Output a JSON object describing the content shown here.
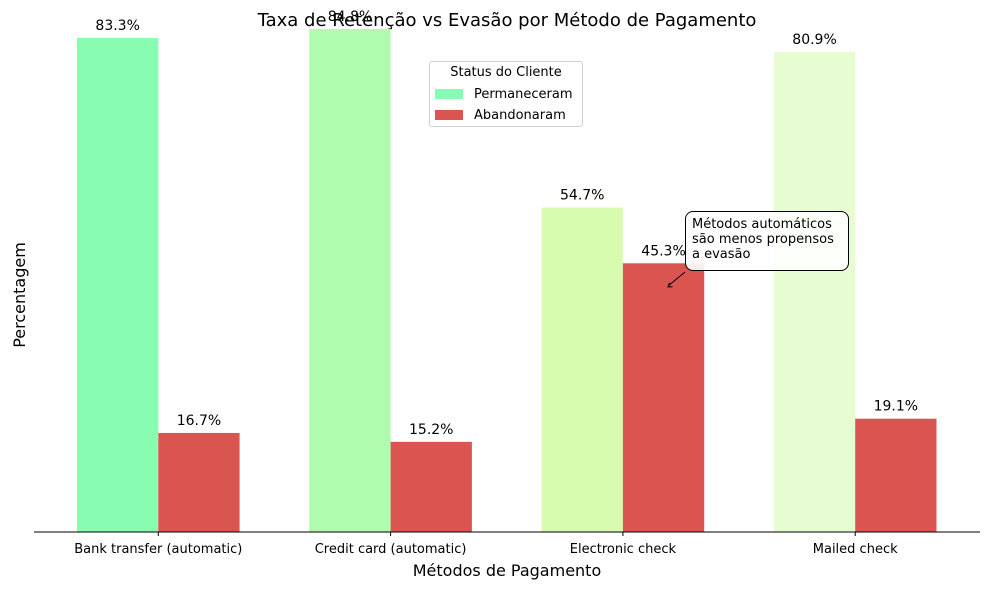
{
  "chart_data": {
    "type": "bar",
    "title": "Taxa de Retenção vs Evasão por Método de Pagamento",
    "xlabel": "Métodos de Pagamento",
    "ylabel": "Percentagem",
    "categories": [
      "Bank transfer (automatic)",
      "Credit card (automatic)",
      "Electronic check",
      "Mailed check"
    ],
    "series": [
      {
        "name": "Permaneceram",
        "values": [
          83.3,
          84.8,
          54.7,
          80.9
        ],
        "labels": [
          "83.3%",
          "84.8%",
          "54.7%",
          "80.9%"
        ],
        "colors": [
          "#88fdb1",
          "#b0fcaf",
          "#d8fcaf",
          "#e8fcd1"
        ]
      },
      {
        "name": "Abandonaram",
        "values": [
          16.7,
          15.2,
          45.3,
          19.1
        ],
        "labels": [
          "16.7%",
          "15.2%",
          "45.3%",
          "19.1%"
        ],
        "colors": [
          "#db5550",
          "#db5550",
          "#db5550",
          "#db5550"
        ]
      }
    ],
    "ylim": [
      0,
      88
    ],
    "y_ticks_visible": false,
    "grid": false,
    "legend": {
      "title": "Status do Cliente",
      "placement": "top-center",
      "items": [
        {
          "label": "Permaneceram",
          "color": "#88fdb1"
        },
        {
          "label": "Abandonaram",
          "color": "#db5550"
        }
      ]
    },
    "annotation": {
      "lines": [
        "Métodos automáticos",
        "são menos propensos",
        "a evasão"
      ],
      "points_to": {
        "category": "Electronic check",
        "series": "Abandonaram",
        "value": 45.3
      }
    }
  }
}
